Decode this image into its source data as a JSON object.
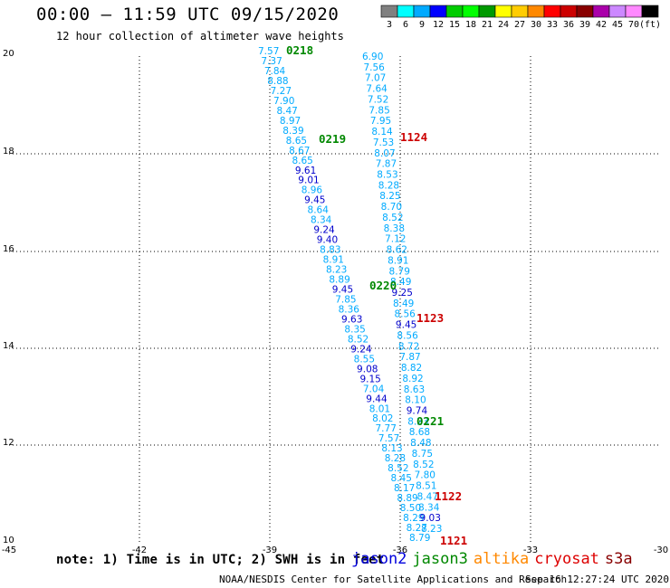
{
  "header": {
    "title": "00:00 – 11:59 UTC 09/15/2020",
    "subtitle": "12 hour collection of altimeter wave heights"
  },
  "colorbar": {
    "colors": [
      "#808080",
      "#00ffff",
      "#00aaff",
      "#0000ff",
      "#00cc00",
      "#00ff00",
      "#009900",
      "#ffff00",
      "#ffcc00",
      "#ff8800",
      "#ff0000",
      "#cc0000",
      "#880000",
      "#aa00aa",
      "#cc88ff",
      "#ff88ff",
      "#000000"
    ],
    "labels": [
      "3",
      "6",
      "9",
      "12",
      "15",
      "18",
      "21",
      "24",
      "27",
      "30",
      "33",
      "36",
      "39",
      "42",
      "45",
      "70",
      "(ft)"
    ]
  },
  "axes": {
    "x_ticks": [
      "-45",
      "-42",
      "-39",
      "-36",
      "-33",
      "-30"
    ],
    "y_ticks": [
      "10",
      "12",
      "14",
      "16",
      "18",
      "20"
    ]
  },
  "passes": [
    {
      "label": "0218",
      "color": "#008800"
    },
    {
      "label": "0219",
      "color": "#008800"
    },
    {
      "label": "1124",
      "color": "#cc0000"
    },
    {
      "label": "0220",
      "color": "#008800"
    },
    {
      "label": "1123",
      "color": "#cc0000"
    },
    {
      "label": "0221",
      "color": "#008800"
    },
    {
      "label": "1122",
      "color": "#cc0000"
    },
    {
      "label": "1121",
      "color": "#cc0000"
    }
  ],
  "track_left": [
    {
      "v": "7.57",
      "c": "#00aaff"
    },
    {
      "v": "7.37",
      "c": "#00aaff"
    },
    {
      "v": "7.84",
      "c": "#00aaff"
    },
    {
      "v": "8.88",
      "c": "#00aaff"
    },
    {
      "v": "7.27",
      "c": "#00aaff"
    },
    {
      "v": "7.90",
      "c": "#00aaff"
    },
    {
      "v": "8.47",
      "c": "#00aaff"
    },
    {
      "v": "8.97",
      "c": "#00aaff"
    },
    {
      "v": "8.39",
      "c": "#00aaff"
    },
    {
      "v": "8.65",
      "c": "#00aaff"
    },
    {
      "v": "8.67",
      "c": "#00aaff"
    },
    {
      "v": "8.65",
      "c": "#00aaff"
    },
    {
      "v": "9.61",
      "c": "#0000cc"
    },
    {
      "v": "9.01",
      "c": "#0000cc"
    },
    {
      "v": "8.96",
      "c": "#00aaff"
    },
    {
      "v": "9.45",
      "c": "#0000cc"
    },
    {
      "v": "8.64",
      "c": "#00aaff"
    },
    {
      "v": "8.34",
      "c": "#00aaff"
    },
    {
      "v": "9.24",
      "c": "#0000cc"
    },
    {
      "v": "9.40",
      "c": "#0000cc"
    },
    {
      "v": "8.83",
      "c": "#00aaff"
    },
    {
      "v": "8.91",
      "c": "#00aaff"
    },
    {
      "v": "8.23",
      "c": "#00aaff"
    },
    {
      "v": "8.89",
      "c": "#00aaff"
    },
    {
      "v": "9.45",
      "c": "#0000cc"
    },
    {
      "v": "7.85",
      "c": "#00aaff"
    },
    {
      "v": "8.36",
      "c": "#00aaff"
    },
    {
      "v": "9.63",
      "c": "#0000cc"
    },
    {
      "v": "8.35",
      "c": "#00aaff"
    },
    {
      "v": "8.52",
      "c": "#00aaff"
    },
    {
      "v": "9.24",
      "c": "#0000cc"
    },
    {
      "v": "8.55",
      "c": "#00aaff"
    },
    {
      "v": "9.08",
      "c": "#0000cc"
    },
    {
      "v": "9.15",
      "c": "#0000cc"
    },
    {
      "v": "7.04",
      "c": "#00aaff"
    },
    {
      "v": "9.44",
      "c": "#0000cc"
    },
    {
      "v": "8.01",
      "c": "#00aaff"
    },
    {
      "v": "8.02",
      "c": "#00aaff"
    },
    {
      "v": "7.77",
      "c": "#00aaff"
    },
    {
      "v": "7.57",
      "c": "#00aaff"
    },
    {
      "v": "8.13",
      "c": "#00aaff"
    },
    {
      "v": "8.28",
      "c": "#00aaff"
    },
    {
      "v": "8.52",
      "c": "#00aaff"
    },
    {
      "v": "8.45",
      "c": "#00aaff"
    },
    {
      "v": "8.17",
      "c": "#00aaff"
    },
    {
      "v": "8.89",
      "c": "#00aaff"
    },
    {
      "v": "8.50",
      "c": "#00aaff"
    },
    {
      "v": "8.29",
      "c": "#00aaff"
    },
    {
      "v": "8.27",
      "c": "#00aaff"
    },
    {
      "v": "8.79",
      "c": "#00aaff"
    }
  ],
  "track_right": [
    {
      "v": "6.90",
      "c": "#00aaff"
    },
    {
      "v": "7.56",
      "c": "#00aaff"
    },
    {
      "v": "7.07",
      "c": "#00aaff"
    },
    {
      "v": "7.64",
      "c": "#00aaff"
    },
    {
      "v": "7.52",
      "c": "#00aaff"
    },
    {
      "v": "7.85",
      "c": "#00aaff"
    },
    {
      "v": "7.95",
      "c": "#00aaff"
    },
    {
      "v": "8.14",
      "c": "#00aaff"
    },
    {
      "v": "7.53",
      "c": "#00aaff"
    },
    {
      "v": "8.07",
      "c": "#00aaff"
    },
    {
      "v": "7.87",
      "c": "#00aaff"
    },
    {
      "v": "8.53",
      "c": "#00aaff"
    },
    {
      "v": "8.28",
      "c": "#00aaff"
    },
    {
      "v": "8.25",
      "c": "#00aaff"
    },
    {
      "v": "8.70",
      "c": "#00aaff"
    },
    {
      "v": "8.52",
      "c": "#00aaff"
    },
    {
      "v": "8.38",
      "c": "#00aaff"
    },
    {
      "v": "7.12",
      "c": "#00aaff"
    },
    {
      "v": "8.62",
      "c": "#00aaff"
    },
    {
      "v": "8.91",
      "c": "#00aaff"
    },
    {
      "v": "8.79",
      "c": "#00aaff"
    },
    {
      "v": "8.49",
      "c": "#00aaff"
    },
    {
      "v": "9.25",
      "c": "#0000cc"
    },
    {
      "v": "8.49",
      "c": "#00aaff"
    },
    {
      "v": "8.56",
      "c": "#00aaff"
    },
    {
      "v": "9.45",
      "c": "#0000cc"
    },
    {
      "v": "8.56",
      "c": "#00aaff"
    },
    {
      "v": "8.72",
      "c": "#00aaff"
    },
    {
      "v": "7.87",
      "c": "#00aaff"
    },
    {
      "v": "8.82",
      "c": "#00aaff"
    },
    {
      "v": "8.92",
      "c": "#00aaff"
    },
    {
      "v": "8.63",
      "c": "#00aaff"
    },
    {
      "v": "8.10",
      "c": "#00aaff"
    },
    {
      "v": "9.74",
      "c": "#0000cc"
    },
    {
      "v": "8.23",
      "c": "#00aaff"
    },
    {
      "v": "8.68",
      "c": "#00aaff"
    },
    {
      "v": "8.48",
      "c": "#00aaff"
    },
    {
      "v": "8.75",
      "c": "#00aaff"
    },
    {
      "v": "8.52",
      "c": "#00aaff"
    },
    {
      "v": "7.80",
      "c": "#00aaff"
    },
    {
      "v": "8.51",
      "c": "#00aaff"
    },
    {
      "v": "8.47",
      "c": "#00aaff"
    },
    {
      "v": "8.34",
      "c": "#00aaff"
    },
    {
      "v": "9.03",
      "c": "#0000cc"
    },
    {
      "v": "8.23",
      "c": "#00aaff"
    }
  ],
  "footer": {
    "note": "note: 1) Time is in UTC; 2) SWH is in feet",
    "satellites": [
      {
        "name": "jason2",
        "color": "#0000dd"
      },
      {
        "name": "jason3",
        "color": "#008800"
      },
      {
        "name": "altika",
        "color": "#ff8800"
      },
      {
        "name": "cryosat",
        "color": "#dd0000"
      },
      {
        "name": "s3a",
        "color": "#880000"
      }
    ],
    "credit": "NOAA/NESDIS Center for Satellite Applications and Research",
    "timestamp": "Sep 16 12:27:24 UTC 2020"
  }
}
